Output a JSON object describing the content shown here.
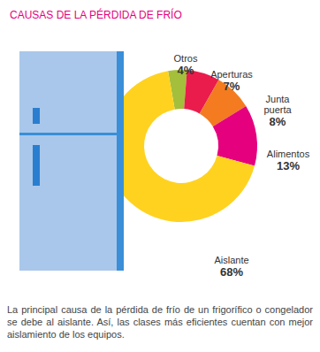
{
  "chart_data": {
    "type": "pie",
    "title": "CAUSAS DE LA PÉRDIDA DE FRÍO",
    "categories": [
      "Otros",
      "Aperturas",
      "Junta puerta",
      "Alimentos",
      "Aislante"
    ],
    "values": [
      4,
      7,
      8,
      13,
      68
    ],
    "value_labels": [
      "4%",
      "7%",
      "8%",
      "13%",
      "68%"
    ],
    "colors": [
      "#a4bf3b",
      "#ea1c4c",
      "#f47b20",
      "#e5007d",
      "#ffd21f"
    ],
    "data_labels": true,
    "caption": "La principal causa de la pérdida de frío de un frigorífico o congelador se debe al aislante. Así, las clases más eficientes cuentan con mejor aislamiento de los equipos."
  }
}
